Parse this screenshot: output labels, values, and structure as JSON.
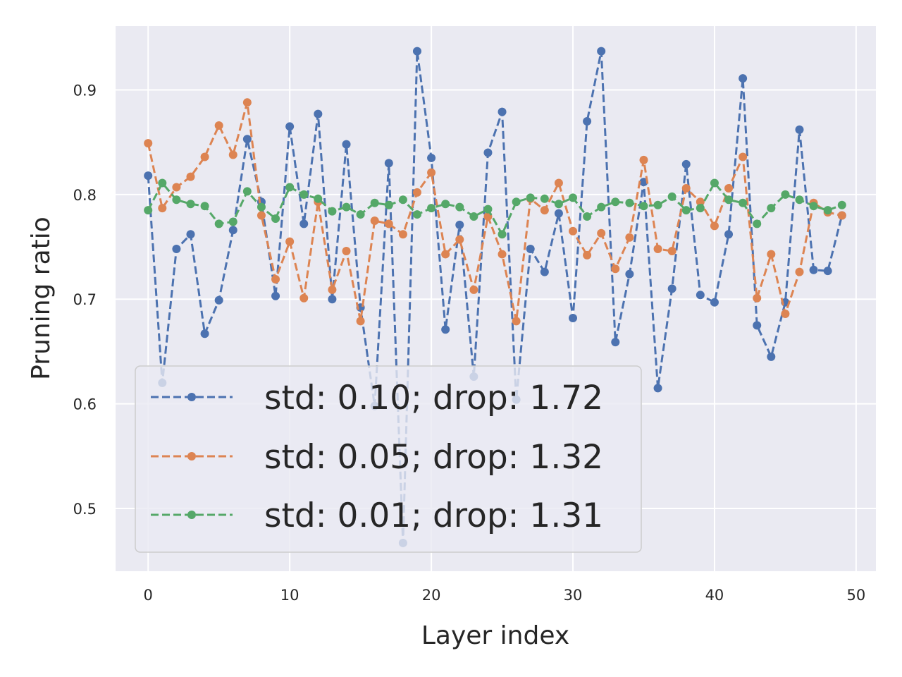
{
  "chart_data": {
    "type": "line",
    "title": "",
    "xlabel": "Layer index",
    "ylabel": "Pruning ratio",
    "xlim": [
      -2.3,
      51.4
    ],
    "ylim": [
      0.44,
      0.961
    ],
    "xticks": [
      0,
      10,
      20,
      30,
      40,
      50
    ],
    "xtick_labels": [
      "0",
      "10",
      "20",
      "30",
      "40",
      "50"
    ],
    "yticks": [
      0.5,
      0.6,
      0.7,
      0.8,
      0.9
    ],
    "ytick_labels": [
      "0.5",
      "0.6",
      "0.7",
      "0.8",
      "0.9"
    ],
    "grid": true,
    "legend_position": "lower-left",
    "x": [
      0,
      1,
      2,
      3,
      4,
      5,
      6,
      7,
      8,
      9,
      10,
      11,
      12,
      13,
      14,
      15,
      16,
      17,
      18,
      19,
      20,
      21,
      22,
      23,
      24,
      25,
      26,
      27,
      28,
      29,
      30,
      31,
      32,
      33,
      34,
      35,
      36,
      37,
      38,
      39,
      40,
      41,
      42,
      43,
      44,
      45,
      46,
      47,
      48,
      49
    ],
    "series": [
      {
        "name": "std: 0.10; drop: 1.72",
        "color": "#4c72b0",
        "values": [
          0.818,
          0.62,
          0.748,
          0.762,
          0.667,
          0.699,
          0.766,
          0.853,
          0.793,
          0.703,
          0.865,
          0.772,
          0.877,
          0.7,
          0.848,
          0.692,
          0.598,
          0.83,
          0.467,
          0.937,
          0.835,
          0.671,
          0.771,
          0.626,
          0.84,
          0.879,
          0.604,
          0.748,
          0.726,
          0.782,
          0.682,
          0.87,
          0.937,
          0.659,
          0.724,
          0.812,
          0.615,
          0.71,
          0.829,
          0.704,
          0.697,
          0.762,
          0.911,
          0.675,
          0.645,
          0.697,
          0.862,
          0.728,
          0.727,
          0.78
        ]
      },
      {
        "name": "std: 0.05; drop: 1.32",
        "color": "#dd8452",
        "values": [
          0.849,
          0.787,
          0.807,
          0.817,
          0.836,
          0.866,
          0.838,
          0.888,
          0.78,
          0.719,
          0.755,
          0.701,
          0.793,
          0.709,
          0.746,
          0.679,
          0.775,
          0.772,
          0.762,
          0.802,
          0.821,
          0.743,
          0.757,
          0.709,
          0.779,
          0.743,
          0.679,
          0.796,
          0.785,
          0.811,
          0.765,
          0.742,
          0.763,
          0.729,
          0.759,
          0.833,
          0.748,
          0.746,
          0.806,
          0.793,
          0.77,
          0.806,
          0.836,
          0.701,
          0.743,
          0.686,
          0.726,
          0.792,
          0.783,
          0.78
        ]
      },
      {
        "name": "std: 0.01; drop: 1.31",
        "color": "#55a868",
        "values": [
          0.785,
          0.811,
          0.795,
          0.791,
          0.789,
          0.772,
          0.774,
          0.803,
          0.788,
          0.777,
          0.807,
          0.8,
          0.796,
          0.784,
          0.788,
          0.781,
          0.792,
          0.79,
          0.795,
          0.781,
          0.787,
          0.791,
          0.788,
          0.779,
          0.786,
          0.762,
          0.793,
          0.797,
          0.796,
          0.791,
          0.797,
          0.779,
          0.788,
          0.793,
          0.792,
          0.789,
          0.79,
          0.798,
          0.785,
          0.787,
          0.811,
          0.795,
          0.792,
          0.772,
          0.787,
          0.8,
          0.795,
          0.789,
          0.785,
          0.79
        ]
      }
    ]
  }
}
